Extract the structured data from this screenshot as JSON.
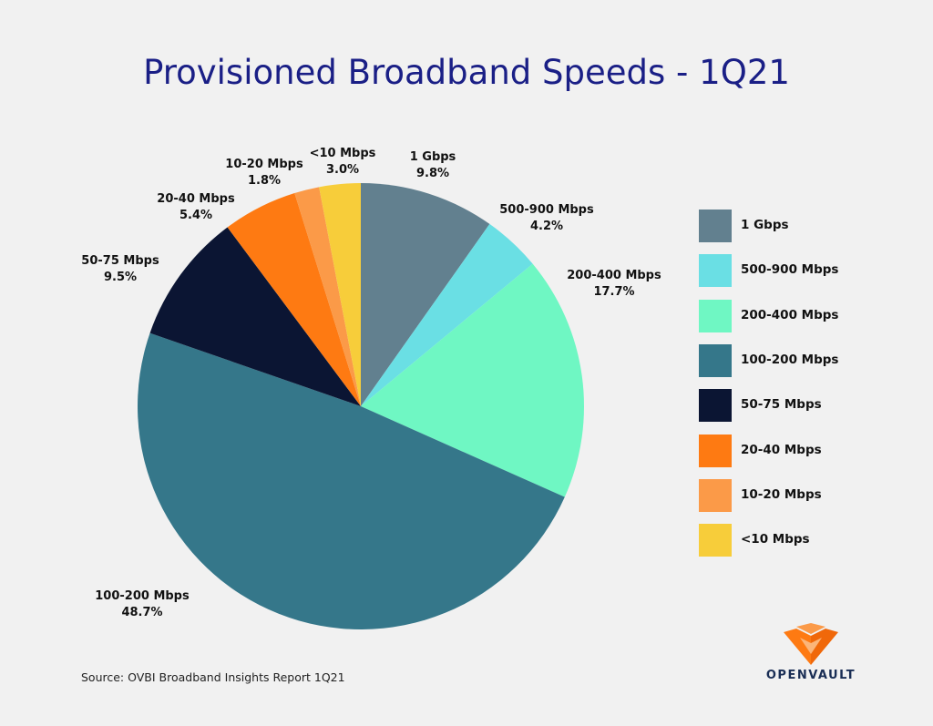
{
  "title": "Provisioned Broadband Speeds - 1Q21",
  "source": "Source: OVBI Broadband Insights Report 1Q21",
  "logo_text": "OpenVault",
  "chart_data": {
    "type": "pie",
    "title": "Provisioned Broadband Speeds - 1Q21",
    "start": "12 o'clock",
    "direction": "clockwise",
    "legend_position": "right",
    "slices": [
      {
        "label": "1 Gbps",
        "value": 9.8,
        "value_label": "9.8%",
        "color": "#62808f"
      },
      {
        "label": "500-900 Mbps",
        "value": 4.2,
        "value_label": "4.2%",
        "color": "#6adfe4"
      },
      {
        "label": "200-400 Mbps",
        "value": 17.7,
        "value_label": "17.7%",
        "color": "#6ff7c3"
      },
      {
        "label": "100-200 Mbps",
        "value": 48.7,
        "value_label": "48.7%",
        "color": "#35778a"
      },
      {
        "label": "50-75 Mbps",
        "value": 9.5,
        "value_label": "9.5%",
        "color": "#0b1533"
      },
      {
        "label": "20-40 Mbps",
        "value": 5.4,
        "value_label": "5.4%",
        "color": "#fe7a12"
      },
      {
        "label": "10-20 Mbps",
        "value": 1.8,
        "value_label": "1.8%",
        "color": "#fb9a48"
      },
      {
        "label": "<10 Mbps",
        "value": 3.0,
        "value_label": "3.0%",
        "color": "#f7cd3a"
      }
    ]
  }
}
